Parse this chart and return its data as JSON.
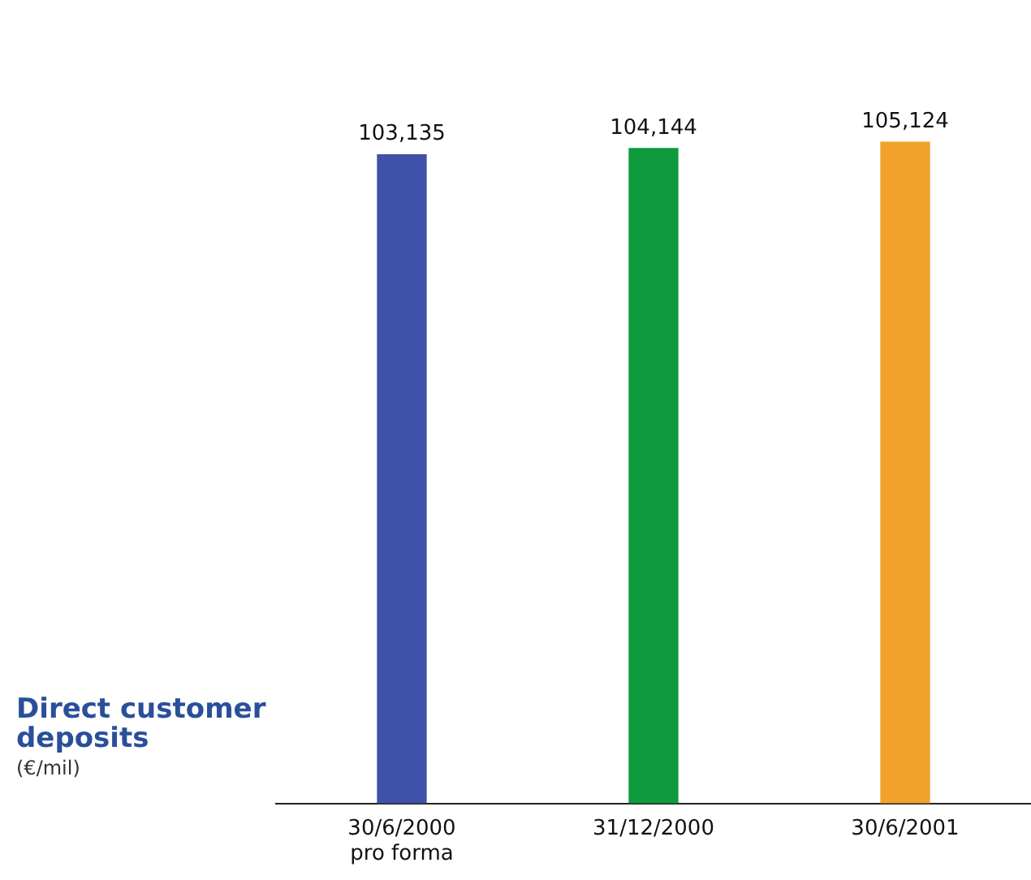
{
  "chart_data": {
    "type": "bar",
    "title": "Direct customer deposits",
    "subtitle": "(€/mil)",
    "categories": [
      "30/6/2000\npro forma",
      "31/12/2000",
      "30/6/2001"
    ],
    "values": [
      103135,
      104144,
      105124
    ],
    "colors": [
      "#3f51a8",
      "#0f9a3e",
      "#f0a22a"
    ],
    "value_labels": [
      "103,135",
      "104,144",
      "105,124"
    ],
    "grid": false,
    "legend": false
  }
}
